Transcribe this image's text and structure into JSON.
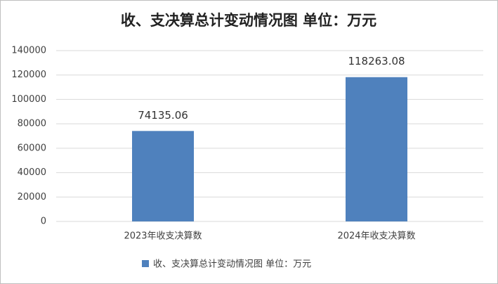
{
  "chart_data": {
    "type": "bar",
    "title": "收、支决算总计变动情况图 单位：万元",
    "categories": [
      "2023年收支决算数",
      "2024年收支决算数"
    ],
    "series": [
      {
        "name": "收、支决算总计变动情况图 单位：万元",
        "color": "#4f81bd",
        "values": [
          74135.06,
          118263.08
        ]
      }
    ],
    "ylim": [
      0,
      140000
    ],
    "yticks": [
      0,
      20000,
      40000,
      60000,
      80000,
      100000,
      120000,
      140000
    ],
    "grid": true,
    "legend": "bottom"
  }
}
